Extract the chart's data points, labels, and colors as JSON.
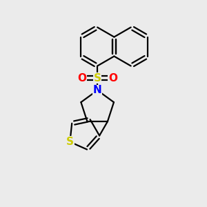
{
  "background_color": "#ebebeb",
  "bond_color": "#000000",
  "bond_width": 1.6,
  "S_color": "#cccc00",
  "N_color": "#0000ff",
  "O_color": "#ff0000",
  "figsize": [
    3.0,
    3.0
  ],
  "dpi": 100,
  "xlim": [
    0,
    10
  ],
  "ylim": [
    0,
    10
  ]
}
